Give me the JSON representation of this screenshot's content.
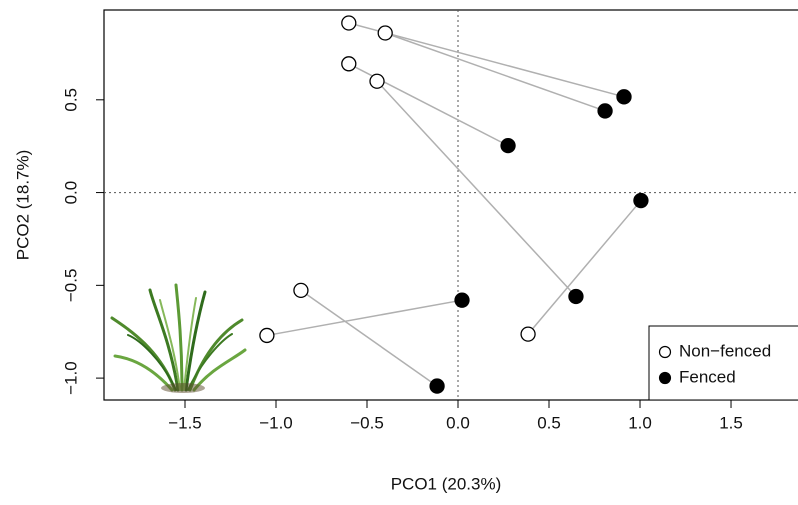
{
  "chart_data": {
    "type": "paired-scatter",
    "x_label": "PCO1 (20.3%)",
    "y_label": "PCO2 (18.7%)",
    "xlim": [
      -1.945,
      1.868
    ],
    "ylim": [
      -1.118,
      0.984
    ],
    "xticks": [
      {
        "value": -1.5,
        "label": "−1.5"
      },
      {
        "value": -1.0,
        "label": "−1.0"
      },
      {
        "value": -0.5,
        "label": "−0.5"
      },
      {
        "value": 0,
        "label": "0.0"
      },
      {
        "value": 0.5,
        "label": "0.5"
      },
      {
        "value": 1.0,
        "label": "1.0"
      },
      {
        "value": 1.5,
        "label": "1.5"
      }
    ],
    "yticks": [
      {
        "value": -1.0,
        "label": "−1.0"
      },
      {
        "value": -0.5,
        "label": "−0.5"
      },
      {
        "value": 0,
        "label": "0.0"
      },
      {
        "value": 0.5,
        "label": "0.5"
      }
    ],
    "hline": 0,
    "vline": 0,
    "link_color": "#b0b0b0",
    "legend": "bottom right",
    "series": [
      {
        "name": "Non−fenced",
        "color": "#000000",
        "hollow": true,
        "x": [
          -0.6,
          -0.4,
          -0.6,
          -0.445,
          0.385,
          -1.05,
          -0.863
        ],
        "values": [
          0.914,
          0.86,
          0.694,
          0.6,
          -0.763,
          -0.77,
          -0.527
        ]
      },
      {
        "name": "Fenced",
        "color": "#000000",
        "hollow": false,
        "x": [
          0.912,
          0.808,
          0.275,
          0.648,
          1.005,
          0.022,
          -0.115
        ],
        "values": [
          0.516,
          0.44,
          0.253,
          -0.56,
          -0.043,
          -0.58,
          -1.043
        ]
      }
    ]
  }
}
